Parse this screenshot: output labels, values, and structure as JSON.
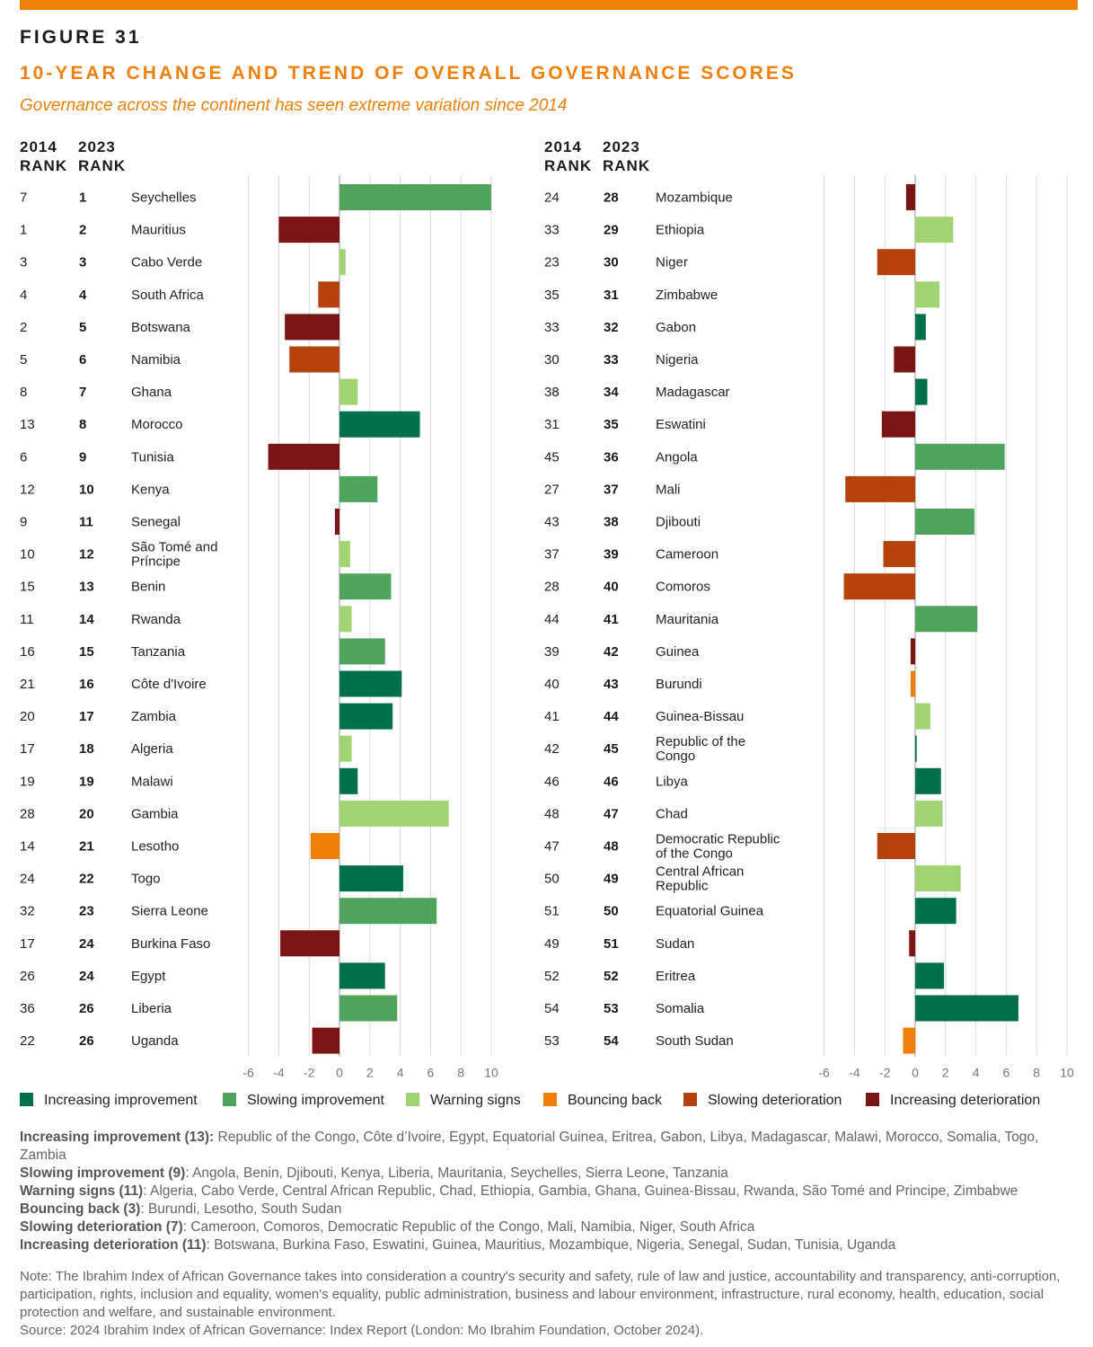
{
  "figure_label": "FIGURE 31",
  "title": "10-YEAR CHANGE AND TREND OF OVERALL GOVERNANCE SCORES",
  "subtitle": "Governance across the continent has seen extreme variation since 2014",
  "headers": {
    "rank2014": [
      "2014",
      "RANK"
    ],
    "rank2023": [
      "2023",
      "RANK"
    ]
  },
  "colors": {
    "increasing_improvement": "#00704a",
    "slowing_improvement": "#4ea45b",
    "warning_signs": "#9ed572",
    "bouncing_back": "#f07f09",
    "slowing_deterioration": "#b5420b",
    "increasing_deterioration": "#7b1513",
    "accent": "#f07f09"
  },
  "legend": [
    {
      "key": "increasing_improvement",
      "label": "Increasing improvement"
    },
    {
      "key": "slowing_improvement",
      "label": "Slowing improvement"
    },
    {
      "key": "warning_signs",
      "label": "Warning signs"
    },
    {
      "key": "bouncing_back",
      "label": "Bouncing back"
    },
    {
      "key": "slowing_deterioration",
      "label": "Slowing deterioration"
    },
    {
      "key": "increasing_deterioration",
      "label": "Increasing deterioration"
    }
  ],
  "chart_data": {
    "type": "bar",
    "orientation": "horizontal",
    "x_ticks": [
      -6,
      -4,
      -2,
      0,
      2,
      4,
      6,
      8,
      10
    ],
    "xlim": [
      -6,
      10
    ],
    "grid": true,
    "panels": [
      {
        "rows": [
          {
            "r2014": "7",
            "r2023": "1",
            "country": "Seychelles",
            "value": 10.0,
            "trend": "slowing_improvement"
          },
          {
            "r2014": "1",
            "r2023": "2",
            "country": "Mauritius",
            "value": -4.0,
            "trend": "increasing_deterioration"
          },
          {
            "r2014": "3",
            "r2023": "3",
            "country": "Cabo Verde",
            "value": 0.4,
            "trend": "warning_signs"
          },
          {
            "r2014": "4",
            "r2023": "4",
            "country": "South Africa",
            "value": -1.4,
            "trend": "slowing_deterioration"
          },
          {
            "r2014": "2",
            "r2023": "5",
            "country": "Botswana",
            "value": -3.6,
            "trend": "increasing_deterioration"
          },
          {
            "r2014": "5",
            "r2023": "6",
            "country": "Namibia",
            "value": -3.3,
            "trend": "slowing_deterioration"
          },
          {
            "r2014": "8",
            "r2023": "7",
            "country": "Ghana",
            "value": 1.2,
            "trend": "warning_signs"
          },
          {
            "r2014": "13",
            "r2023": "8",
            "country": "Morocco",
            "value": 5.3,
            "trend": "increasing_improvement"
          },
          {
            "r2014": "6",
            "r2023": "9",
            "country": "Tunisia",
            "value": -4.7,
            "trend": "increasing_deterioration"
          },
          {
            "r2014": "12",
            "r2023": "10",
            "country": "Kenya",
            "value": 2.5,
            "trend": "slowing_improvement"
          },
          {
            "r2014": "9",
            "r2023": "11",
            "country": "Senegal",
            "value": -0.3,
            "trend": "increasing_deterioration"
          },
          {
            "r2014": "10",
            "r2023": "12",
            "country": "São Tomé and Príncipe",
            "value": 0.7,
            "trend": "warning_signs"
          },
          {
            "r2014": "15",
            "r2023": "13",
            "country": "Benin",
            "value": 3.4,
            "trend": "slowing_improvement"
          },
          {
            "r2014": "11",
            "r2023": "14",
            "country": "Rwanda",
            "value": 0.8,
            "trend": "warning_signs"
          },
          {
            "r2014": "16",
            "r2023": "15",
            "country": "Tanzania",
            "value": 3.0,
            "trend": "slowing_improvement"
          },
          {
            "r2014": "21",
            "r2023": "16",
            "country": "Côte d'Ivoire",
            "value": 4.1,
            "trend": "increasing_improvement"
          },
          {
            "r2014": "20",
            "r2023": "17",
            "country": "Zambia",
            "value": 3.5,
            "trend": "increasing_improvement"
          },
          {
            "r2014": "17",
            "r2023": "18",
            "country": "Algeria",
            "value": 0.8,
            "trend": "warning_signs"
          },
          {
            "r2014": "19",
            "r2023": "19",
            "country": "Malawi",
            "value": 1.2,
            "trend": "increasing_improvement"
          },
          {
            "r2014": "28",
            "r2023": "20",
            "country": "Gambia",
            "value": 7.2,
            "trend": "warning_signs"
          },
          {
            "r2014": "14",
            "r2023": "21",
            "country": "Lesotho",
            "value": -1.9,
            "trend": "bouncing_back"
          },
          {
            "r2014": "24",
            "r2023": "22",
            "country": "Togo",
            "value": 4.2,
            "trend": "increasing_improvement"
          },
          {
            "r2014": "32",
            "r2023": "23",
            "country": "Sierra Leone",
            "value": 6.4,
            "trend": "slowing_improvement"
          },
          {
            "r2014": "17",
            "r2023": "24",
            "country": "Burkina Faso",
            "value": -3.9,
            "trend": "increasing_deterioration"
          },
          {
            "r2014": "26",
            "r2023": "24",
            "country": "Egypt",
            "value": 3.0,
            "trend": "increasing_improvement"
          },
          {
            "r2014": "36",
            "r2023": "26",
            "country": "Liberia",
            "value": 3.8,
            "trend": "slowing_improvement"
          },
          {
            "r2014": "22",
            "r2023": "26",
            "country": "Uganda",
            "value": -1.8,
            "trend": "increasing_deterioration"
          }
        ]
      },
      {
        "rows": [
          {
            "r2014": "24",
            "r2023": "28",
            "country": "Mozambique",
            "value": -0.6,
            "trend": "increasing_deterioration"
          },
          {
            "r2014": "33",
            "r2023": "29",
            "country": "Ethiopia",
            "value": 2.5,
            "trend": "warning_signs"
          },
          {
            "r2014": "23",
            "r2023": "30",
            "country": "Niger",
            "value": -2.5,
            "trend": "slowing_deterioration"
          },
          {
            "r2014": "35",
            "r2023": "31",
            "country": "Zimbabwe",
            "value": 1.6,
            "trend": "warning_signs"
          },
          {
            "r2014": "33",
            "r2023": "32",
            "country": "Gabon",
            "value": 0.7,
            "trend": "increasing_improvement"
          },
          {
            "r2014": "30",
            "r2023": "33",
            "country": "Nigeria",
            "value": -1.4,
            "trend": "increasing_deterioration"
          },
          {
            "r2014": "38",
            "r2023": "34",
            "country": "Madagascar",
            "value": 0.8,
            "trend": "increasing_improvement"
          },
          {
            "r2014": "31",
            "r2023": "35",
            "country": "Eswatini",
            "value": -2.2,
            "trend": "increasing_deterioration"
          },
          {
            "r2014": "45",
            "r2023": "36",
            "country": "Angola",
            "value": 5.9,
            "trend": "slowing_improvement"
          },
          {
            "r2014": "27",
            "r2023": "37",
            "country": "Mali",
            "value": -4.6,
            "trend": "slowing_deterioration"
          },
          {
            "r2014": "43",
            "r2023": "38",
            "country": "Djibouti",
            "value": 3.9,
            "trend": "slowing_improvement"
          },
          {
            "r2014": "37",
            "r2023": "39",
            "country": "Cameroon",
            "value": -2.1,
            "trend": "slowing_deterioration"
          },
          {
            "r2014": "28",
            "r2023": "40",
            "country": "Comoros",
            "value": -4.7,
            "trend": "slowing_deterioration"
          },
          {
            "r2014": "44",
            "r2023": "41",
            "country": "Mauritania",
            "value": 4.1,
            "trend": "slowing_improvement"
          },
          {
            "r2014": "39",
            "r2023": "42",
            "country": "Guinea",
            "value": -0.3,
            "trend": "increasing_deterioration"
          },
          {
            "r2014": "40",
            "r2023": "43",
            "country": "Burundi",
            "value": -0.3,
            "trend": "bouncing_back"
          },
          {
            "r2014": "41",
            "r2023": "44",
            "country": "Guinea-Bissau",
            "value": 1.0,
            "trend": "warning_signs"
          },
          {
            "r2014": "42",
            "r2023": "45",
            "country": "Republic of the Congo",
            "value": 0.1,
            "trend": "increasing_improvement"
          },
          {
            "r2014": "46",
            "r2023": "46",
            "country": "Libya",
            "value": 1.7,
            "trend": "increasing_improvement"
          },
          {
            "r2014": "48",
            "r2023": "47",
            "country": "Chad",
            "value": 1.8,
            "trend": "warning_signs"
          },
          {
            "r2014": "47",
            "r2023": "48",
            "country": "Democratic Republic of the Congo",
            "value": -2.5,
            "trend": "slowing_deterioration"
          },
          {
            "r2014": "50",
            "r2023": "49",
            "country": "Central African Republic",
            "value": 3.0,
            "trend": "warning_signs"
          },
          {
            "r2014": "51",
            "r2023": "50",
            "country": "Equatorial Guinea",
            "value": 2.7,
            "trend": "increasing_improvement"
          },
          {
            "r2014": "49",
            "r2023": "51",
            "country": "Sudan",
            "value": -0.4,
            "trend": "increasing_deterioration"
          },
          {
            "r2014": "52",
            "r2023": "52",
            "country": "Eritrea",
            "value": 1.9,
            "trend": "increasing_improvement"
          },
          {
            "r2014": "54",
            "r2023": "53",
            "country": "Somalia",
            "value": 6.8,
            "trend": "increasing_improvement"
          },
          {
            "r2014": "53",
            "r2023": "54",
            "country": "South Sudan",
            "value": -0.8,
            "trend": "bouncing_back"
          }
        ]
      }
    ]
  },
  "groups": [
    {
      "label": "Increasing improvement (13):",
      "text": "Republic of the Congo, Côte d’Ivoire, Egypt, Equatorial Guinea, Eritrea, Gabon, Libya, Madagascar, Malawi, Morocco, Somalia, Togo, Zambia"
    },
    {
      "label": "Slowing improvement (9)",
      "text": ": Angola, Benin, Djibouti, Kenya, Liberia, Mauritania, Seychelles, Sierra Leone, Tanzania"
    },
    {
      "label": "Warning signs (11)",
      "text": ": Algeria, Cabo Verde, Central African Republic, Chad, Ethiopia, Gambia, Ghana, Guinea-Bissau, Rwanda, São Tomé and Principe, Zimbabwe"
    },
    {
      "label": "Bouncing back (3)",
      "text": ": Burundi, Lesotho, South Sudan"
    },
    {
      "label": "Slowing deterioration (7)",
      "text": ": Cameroon, Comoros, Democratic Republic of the Congo, Mali, Namibia, Niger, South Africa"
    },
    {
      "label": "Increasing deterioration (11)",
      "text": ": Botswana, Burkina Faso, Eswatini, Guinea, Mauritius, Mozambique, Nigeria, Senegal, Sudan, Tunisia, Uganda"
    }
  ],
  "note": "Note: The Ibrahim Index of African Governance takes into consideration a country's security and safety, rule of law and justice, accountability and transparency, anti-corruption, participation, rights, inclusion and equality, women's equality, public administration, business and labour environment, infrastructure, rural economy, health, education, social protection and welfare, and sustainable environment.",
  "source": "Source: 2024 Ibrahim Index of African Governance: Index Report (London: Mo Ibrahim Foundation, October 2024)."
}
